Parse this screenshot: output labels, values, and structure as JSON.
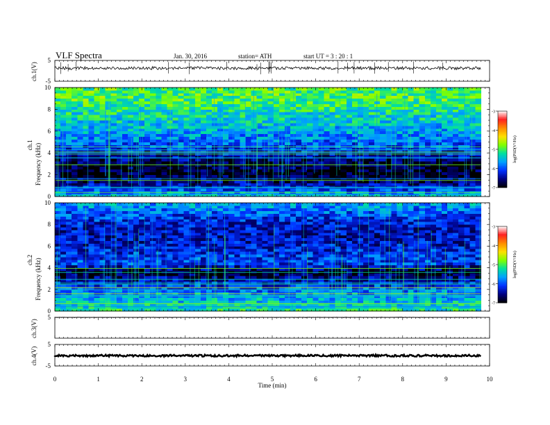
{
  "header": {
    "title": "VLF  Spectra",
    "date": "Jan. 30, 2016",
    "station": "station= ATH",
    "start": "start  UT =   3  : 20 : 1"
  },
  "chart_data": {
    "type": "heatmap",
    "xlabel": "Time  (min)",
    "xlim": [
      0,
      10
    ],
    "x_ticks": [
      "0",
      "1",
      "2",
      "3",
      "4",
      "5",
      "6",
      "7",
      "8",
      "9",
      "10"
    ],
    "data_end_min": 9.8,
    "colorscale": {
      "label": "log(PSD(V²/Hz)",
      "range": [
        -7,
        -3
      ],
      "ticks": [
        "-3",
        "-4",
        "-5",
        "-6",
        "-7"
      ],
      "colors": [
        "#ffffff",
        "#ff2020",
        "#ff8c00",
        "#ffe000",
        "#80ff00",
        "#00e0a0",
        "#00a0ff",
        "#0030ff",
        "#000080",
        "#000000"
      ]
    },
    "panels": [
      {
        "id": "ch1-waveform",
        "type": "line",
        "ylabel": "ch.1(V)",
        "ylim": [
          -5,
          5
        ],
        "y_ticks": [
          "5",
          "-5"
        ],
        "baseline": 1.3
      },
      {
        "id": "ch1-spectrogram",
        "type": "heatmap",
        "ylabel": "ch.1",
        "ylabel2": "Frequency  (kHz)",
        "ylim": [
          0,
          10
        ],
        "y_ticks": [
          "0",
          "2",
          "4",
          "6",
          "8",
          "10"
        ],
        "level_profile": [
          {
            "freq_khz": 0,
            "log_psd": -5.4
          },
          {
            "freq_khz": 1,
            "log_psd": -6.4
          },
          {
            "freq_khz": 2,
            "log_psd": -6.9
          },
          {
            "freq_khz": 3,
            "log_psd": -6.8
          },
          {
            "freq_khz": 4,
            "log_psd": -6.3
          },
          {
            "freq_khz": 5,
            "log_psd": -5.9
          },
          {
            "freq_khz": 6,
            "log_psd": -5.6
          },
          {
            "freq_khz": 7,
            "log_psd": -5.4
          },
          {
            "freq_khz": 8,
            "log_psd": -5.2
          },
          {
            "freq_khz": 9,
            "log_psd": -5.0
          },
          {
            "freq_khz": 10,
            "log_psd": -5.0
          }
        ]
      },
      {
        "id": "ch2-spectrogram",
        "type": "heatmap",
        "ylabel": "ch.2",
        "ylabel2": "Frequency  (kHz)",
        "ylim": [
          0,
          10
        ],
        "y_ticks": [
          "0",
          "2",
          "4",
          "6",
          "8",
          "10"
        ],
        "level_profile": [
          {
            "freq_khz": 0,
            "log_psd": -5.2
          },
          {
            "freq_khz": 1,
            "log_psd": -5.5
          },
          {
            "freq_khz": 2,
            "log_psd": -5.9
          },
          {
            "freq_khz": 3,
            "log_psd": -6.5
          },
          {
            "freq_khz": 3.6,
            "log_psd": -6.9
          },
          {
            "freq_khz": 4.5,
            "log_psd": -6.0
          },
          {
            "freq_khz": 6,
            "log_psd": -6.3
          },
          {
            "freq_khz": 7,
            "log_psd": -6.4
          },
          {
            "freq_khz": 8,
            "log_psd": -6.3
          },
          {
            "freq_khz": 9,
            "log_psd": -6.0
          },
          {
            "freq_khz": 10,
            "log_psd": -5.6
          }
        ]
      },
      {
        "id": "ch3-waveform",
        "type": "line",
        "ylabel": "ch.3(V)",
        "ylim": [
          -5,
          5
        ],
        "y_ticks": [
          "5"
        ],
        "baseline": 5.0
      },
      {
        "id": "ch4-waveform",
        "type": "line",
        "ylabel": "ch.4(V)",
        "ylim": [
          -5,
          5
        ],
        "y_ticks": [
          "5",
          "-5"
        ],
        "baseline": -0.2
      }
    ]
  }
}
